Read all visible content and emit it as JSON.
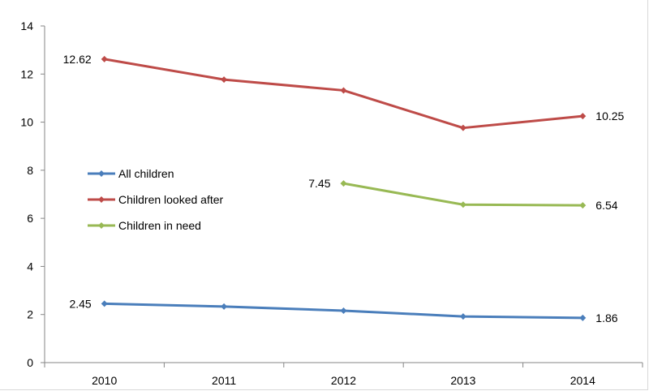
{
  "chart_data": {
    "type": "line",
    "x": [
      "2010",
      "2011",
      "2012",
      "2013",
      "2014"
    ],
    "ylim": [
      0,
      14
    ],
    "yticks": [
      0,
      2,
      4,
      6,
      8,
      10,
      12,
      14
    ],
    "grid": false,
    "legend_position": "center-left",
    "series": [
      {
        "name": "All children",
        "color": "#4a7ebb",
        "values": [
          2.45,
          2.33,
          2.16,
          1.92,
          1.86
        ]
      },
      {
        "name": "Children looked after",
        "color": "#be4b48",
        "values": [
          12.62,
          11.77,
          11.32,
          9.76,
          10.25
        ]
      },
      {
        "name": "Children in need",
        "color": "#98b954",
        "values": [
          null,
          null,
          7.45,
          6.57,
          6.54
        ]
      }
    ],
    "data_labels": [
      {
        "series": 0,
        "index": 0,
        "text": "2.45"
      },
      {
        "series": 0,
        "index": 4,
        "text": "1.86"
      },
      {
        "series": 1,
        "index": 0,
        "text": "12.62"
      },
      {
        "series": 1,
        "index": 4,
        "text": "10.25"
      },
      {
        "series": 2,
        "index": 2,
        "text": "7.45"
      },
      {
        "series": 2,
        "index": 4,
        "text": "6.54"
      }
    ]
  }
}
